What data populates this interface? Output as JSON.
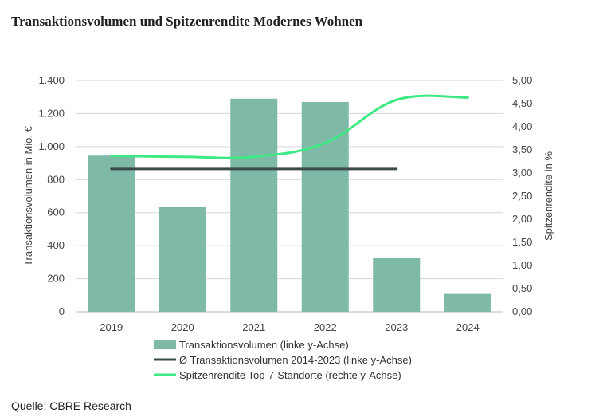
{
  "title": "Transaktionsvolumen und Spitzenrendite Modernes Wohnen",
  "source": "Quelle: CBRE Research",
  "chart_data": {
    "type": "bar",
    "categories": [
      "2019",
      "2020",
      "2021",
      "2022",
      "2023",
      "2024"
    ],
    "y_left": {
      "label": "Transaktionsvolumen in Mio. €",
      "lim": [
        0,
        1400
      ],
      "ticks": [
        0,
        200,
        400,
        600,
        800,
        1000,
        1200,
        1400
      ],
      "tick_labels": [
        "0",
        "200",
        "400",
        "600",
        "800",
        "1.000",
        "1.200",
        "1.400"
      ]
    },
    "y_right": {
      "label": "Spitzenrendite in %",
      "lim": [
        0,
        5
      ],
      "ticks": [
        0,
        0.5,
        1,
        1.5,
        2,
        2.5,
        3,
        3.5,
        4,
        4.5,
        5
      ],
      "tick_labels": [
        "0,00",
        "0,50",
        "1,00",
        "1,50",
        "2,00",
        "2,50",
        "3,00",
        "3,50",
        "4,00",
        "4,50",
        "5,00"
      ]
    },
    "series": [
      {
        "name": "Transaktionsvolumen (linke y-Achse)",
        "kind": "bar",
        "axis": "left",
        "color": "#7fbaa8",
        "values": [
          945,
          635,
          1290,
          1270,
          325,
          108
        ]
      },
      {
        "name": "Ø Transaktionsvolumen 2014-2023 (linke y-Achse)",
        "kind": "line",
        "axis": "left",
        "color": "#3d4a4a",
        "values": [
          865,
          865,
          865,
          865,
          865,
          null
        ]
      },
      {
        "name": "Spitzenrendite Top-7-Standorte (rechte y-Achse)",
        "kind": "line",
        "axis": "right",
        "color": "#3ee882",
        "values": [
          3.37,
          3.35,
          3.35,
          3.65,
          4.58,
          4.63
        ]
      }
    ],
    "grid": true,
    "legend_position": "bottom"
  }
}
